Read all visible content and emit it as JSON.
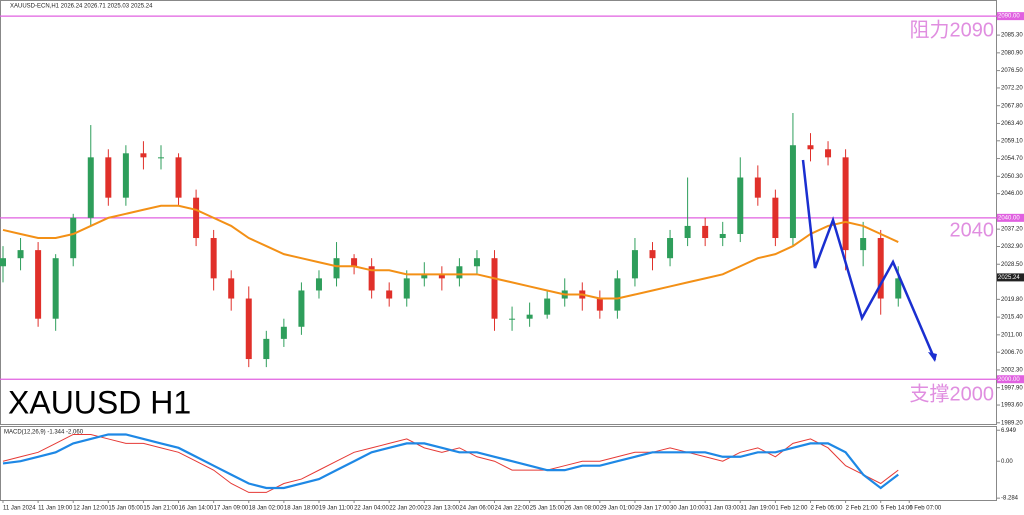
{
  "chart_data": {
    "type": "candlestick",
    "title": "XAUUSD-ECN,H1  2026.24 2026.71 2025.03 2025.24",
    "x": [
      0,
      8,
      16,
      24,
      32,
      40,
      48,
      56,
      64,
      72,
      80,
      88,
      96,
      104,
      112,
      120,
      128,
      136,
      144,
      152,
      160,
      168,
      176,
      184,
      192,
      200,
      208,
      216,
      224,
      232,
      240,
      248,
      256,
      264,
      272,
      280,
      288,
      296,
      304,
      312,
      320,
      328,
      336,
      344,
      352,
      360,
      368,
      376,
      384,
      392,
      400,
      408
    ],
    "open": [
      2028,
      2030,
      2032,
      2015,
      2030,
      2040,
      2055,
      2045,
      2056,
      2055,
      2055,
      2045,
      2035,
      2025,
      2020,
      2005,
      2010,
      2013,
      2022,
      2025,
      2030,
      2028,
      2022,
      2020,
      2025,
      2026,
      2025,
      2028,
      2030,
      2015,
      2015,
      2016,
      2020,
      2022,
      2020,
      2017,
      2025,
      2032,
      2030,
      2035,
      2038,
      2035,
      2036,
      2050,
      2045,
      2035,
      2058,
      2057,
      2055,
      2032,
      2035,
      2020
    ],
    "high": [
      2033,
      2035,
      2034,
      2031,
      2041,
      2063,
      2057,
      2058,
      2059,
      2058,
      2056,
      2047,
      2037,
      2027,
      2023,
      2012,
      2015,
      2024,
      2027,
      2034,
      2031,
      2030,
      2024,
      2027,
      2029,
      2028,
      2030,
      2032,
      2032,
      2018,
      2019,
      2022,
      2025,
      2024,
      2022,
      2027,
      2035,
      2034,
      2037,
      2050,
      2040,
      2039,
      2055,
      2053,
      2047,
      2066,
      2061,
      2059,
      2057,
      2039,
      2037,
      2028
    ],
    "low": [
      2024,
      2027,
      2013,
      2012,
      2028,
      2038,
      2043,
      2043,
      2052,
      2052,
      2043,
      2033,
      2022,
      2017,
      2003,
      2003,
      2008,
      2011,
      2020,
      2023,
      2026,
      2020,
      2018,
      2018,
      2023,
      2022,
      2023,
      2026,
      2012,
      2012,
      2013,
      2015,
      2018,
      2017,
      2015,
      2015,
      2023,
      2027,
      2028,
      2033,
      2033,
      2033,
      2034,
      2043,
      2033,
      2033,
      2054,
      2053,
      2027,
      2028,
      2016,
      2018
    ],
    "close": [
      2030,
      2032,
      2015,
      2030,
      2040,
      2055,
      2045,
      2056,
      2055,
      2055,
      2045,
      2035,
      2025,
      2020,
      2005,
      2010,
      2013,
      2022,
      2025,
      2030,
      2028,
      2022,
      2020,
      2025,
      2026,
      2025,
      2028,
      2030,
      2015,
      2015,
      2016,
      2020,
      2022,
      2020,
      2017,
      2025,
      2032,
      2030,
      2035,
      2038,
      2035,
      2036,
      2050,
      2045,
      2035,
      2058,
      2057,
      2055,
      2032,
      2035,
      2020,
      2025
    ],
    "up_color": "#2e9e5b",
    "down_color": "#e0302a",
    "ma": {
      "color": "#f39016",
      "values": [
        2037,
        2036,
        2035,
        2035,
        2036,
        2038,
        2040,
        2041,
        2042,
        2043,
        2043,
        2042,
        2040,
        2038,
        2035,
        2033,
        2031,
        2030,
        2029,
        2028,
        2028,
        2027,
        2027,
        2026,
        2026,
        2026,
        2026,
        2026,
        2025,
        2024,
        2023,
        2022,
        2021,
        2021,
        2020,
        2020,
        2021,
        2022,
        2023,
        2024,
        2025,
        2026,
        2028,
        2030,
        2031,
        2033,
        2036,
        2038,
        2039,
        2038,
        2036,
        2034
      ]
    },
    "xlim": [
      0,
      453
    ],
    "xticks": [
      {
        "value": 0,
        "label": "11 Jan 2024"
      },
      {
        "value": 16,
        "label": "11 Jan 19:00"
      },
      {
        "value": 32,
        "label": "12 Jan 12:00"
      },
      {
        "value": 48,
        "label": "15 Jan 05:00"
      },
      {
        "value": 64,
        "label": "15 Jan 21:00"
      },
      {
        "value": 80,
        "label": "16 Jan 14:00"
      },
      {
        "value": 96,
        "label": "17 Jan 09:00"
      },
      {
        "value": 112,
        "label": "18 Jan 02:00"
      },
      {
        "value": 128,
        "label": "18 Jan 18:00"
      },
      {
        "value": 144,
        "label": "19 Jan 11:00"
      },
      {
        "value": 160,
        "label": "22 Jan 04:00"
      },
      {
        "value": 176,
        "label": "22 Jan 20:00"
      },
      {
        "value": 192,
        "label": "23 Jan 13:00"
      },
      {
        "value": 208,
        "label": "24 Jan 06:00"
      },
      {
        "value": 224,
        "label": "24 Jan 22:00"
      },
      {
        "value": 240,
        "label": "25 Jan 15:00"
      },
      {
        "value": 256,
        "label": "26 Jan 08:00"
      },
      {
        "value": 272,
        "label": "29 Jan 01:00"
      },
      {
        "value": 288,
        "label": "29 Jan 17:00"
      },
      {
        "value": 304,
        "label": "30 Jan 10:00"
      },
      {
        "value": 320,
        "label": "31 Jan 03:00"
      },
      {
        "value": 336,
        "label": "31 Jan 19:00"
      },
      {
        "value": 352,
        "label": "1 Feb 12:00"
      },
      {
        "value": 368,
        "label": "2 Feb 05:00"
      },
      {
        "value": 384,
        "label": "2 Feb 21:00"
      },
      {
        "value": 400,
        "label": "5 Feb 14:00"
      },
      {
        "value": 413,
        "label": "6 Feb 07:00"
      }
    ],
    "ylim": [
      1988.9,
      2094
    ],
    "yticks": [
      {
        "value": 2085.3,
        "label": "2085.30"
      },
      {
        "value": 2080.9,
        "label": "2080.90"
      },
      {
        "value": 2076.5,
        "label": "2076.50"
      },
      {
        "value": 2072.2,
        "label": "2072.20"
      },
      {
        "value": 2067.8,
        "label": "2067.80"
      },
      {
        "value": 2063.4,
        "label": "2063.40"
      },
      {
        "value": 2059.1,
        "label": "2059.10"
      },
      {
        "value": 2054.7,
        "label": "2054.70"
      },
      {
        "value": 2050.3,
        "label": "2050.30"
      },
      {
        "value": 2046,
        "label": "2046.00"
      },
      {
        "value": 2037.2,
        "label": "2037.20"
      },
      {
        "value": 2032.9,
        "label": "2032.90"
      },
      {
        "value": 2028.5,
        "label": "2028.50"
      },
      {
        "value": 2019.8,
        "label": "2019.80"
      },
      {
        "value": 2015.4,
        "label": "2015.40"
      },
      {
        "value": 2011,
        "label": "2011.00"
      },
      {
        "value": 2006.7,
        "label": "2006.70"
      },
      {
        "value": 2002.3,
        "label": "2002.30"
      },
      {
        "value": 1997.9,
        "label": "1997.90"
      },
      {
        "value": 1993.6,
        "label": "1993.60"
      },
      {
        "value": 1989.2,
        "label": "1989.20"
      }
    ],
    "hlines": [
      {
        "value": 2090,
        "label": "2090.00"
      },
      {
        "value": 2040,
        "label": "2040.00"
      },
      {
        "value": 2000,
        "label": "2000.00"
      }
    ],
    "hline_color": "#e060e0",
    "last_price": {
      "value": 2025.24,
      "label": "2025.24"
    },
    "annotations": [
      "阻力2090",
      "2040",
      "支撑2000"
    ],
    "symbol_label": "XAUUSD H1",
    "macd": {
      "label": "MACD(12,26,9) -1.344 -2.060",
      "ylim": [
        -8.7,
        7.9
      ],
      "yticks": [
        6.949,
        {
          "value": 0,
          "label": "0.00"
        },
        -8.284
      ],
      "series": [
        {
          "color": "#e53935",
          "values": [
            0,
            1,
            2,
            4,
            6,
            6,
            5,
            4,
            4,
            3,
            2,
            0,
            -2,
            -5,
            -7,
            -7,
            -5,
            -4,
            -2,
            0,
            2,
            3,
            4,
            5,
            3,
            2,
            3,
            1,
            0,
            -2,
            -2,
            -2,
            -1,
            0,
            0,
            1,
            2,
            2,
            3,
            2,
            1,
            0,
            2,
            3,
            1,
            4,
            5,
            3,
            -1,
            -3,
            -5,
            -2
          ]
        },
        {
          "color": "#1e88e5",
          "values": [
            -0.5,
            0,
            1,
            2,
            4,
            5,
            6,
            6,
            5,
            4,
            3,
            1,
            -1,
            -3,
            -5,
            -6,
            -6,
            -5,
            -4,
            -2,
            0,
            2,
            3,
            4,
            4,
            3,
            2,
            2,
            1,
            0,
            -1,
            -2,
            -2,
            -1,
            -1,
            0,
            1,
            2,
            2,
            2,
            2,
            1,
            1,
            2,
            2,
            3,
            4,
            4,
            2,
            -3,
            -6,
            -3
          ]
        }
      ]
    }
  }
}
